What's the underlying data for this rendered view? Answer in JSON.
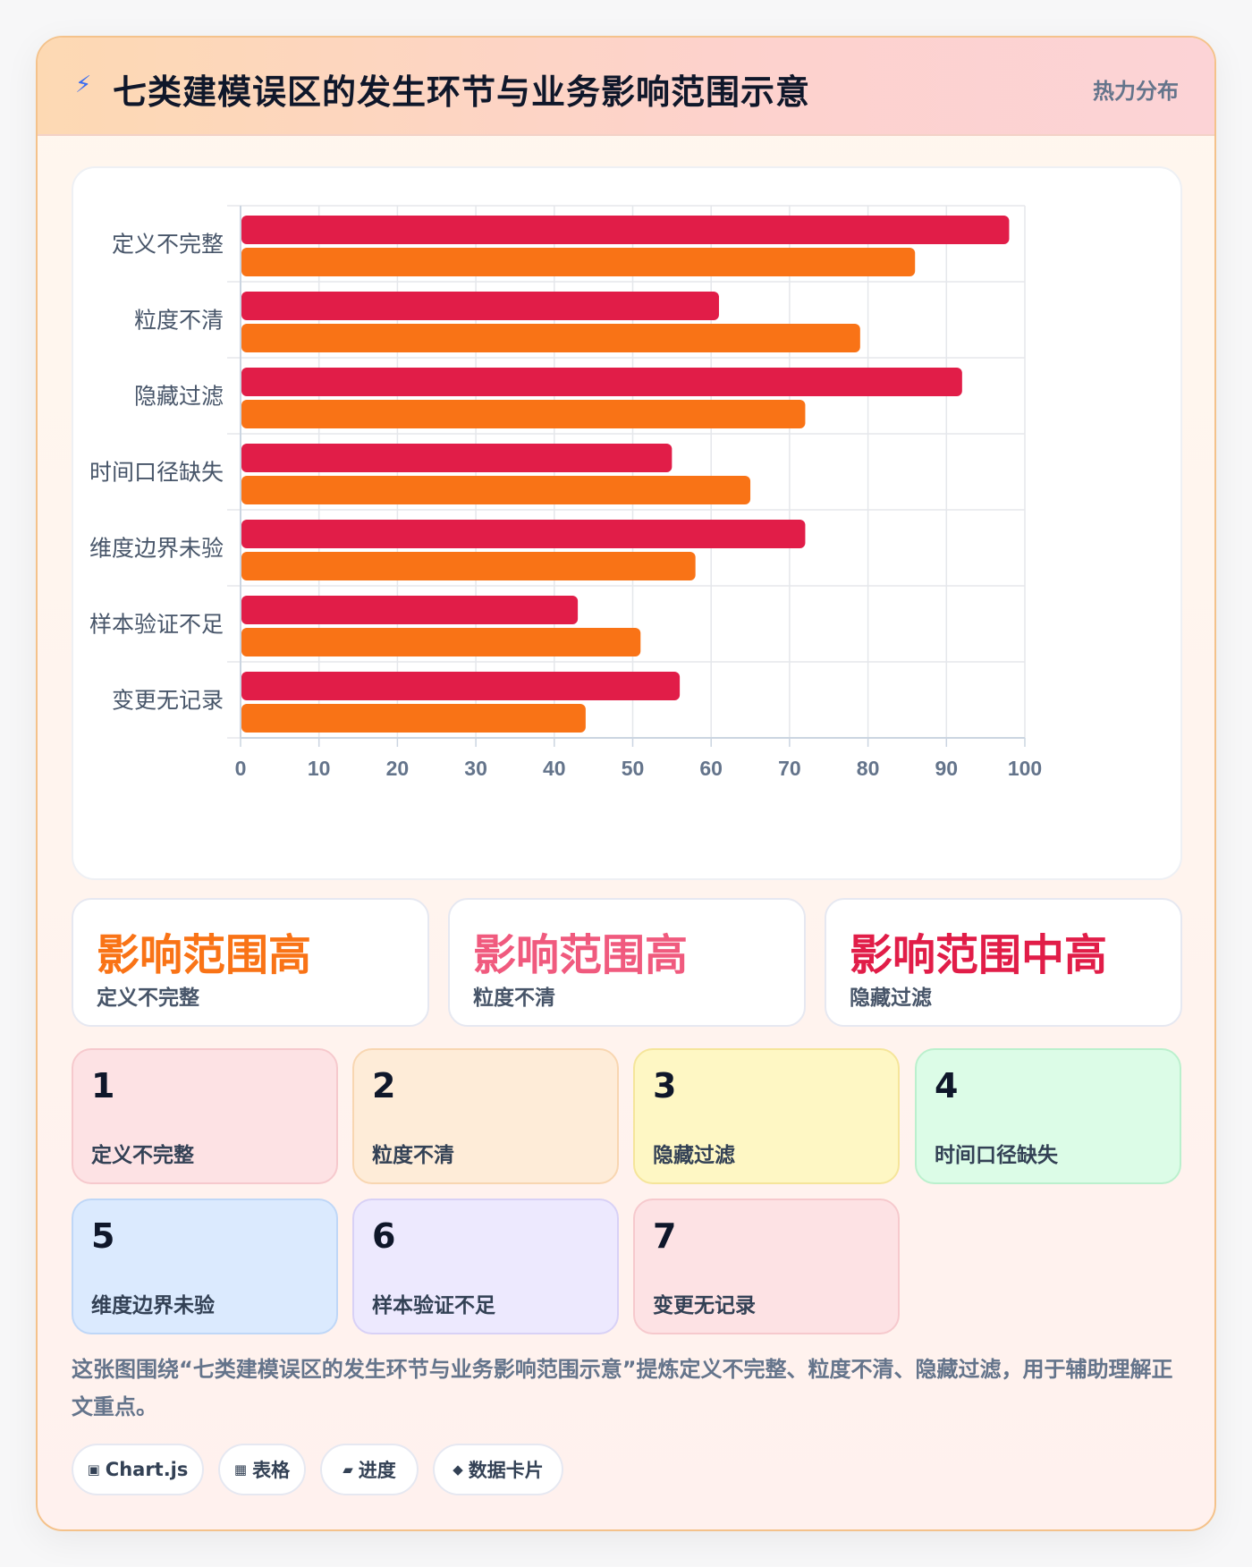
{
  "header": {
    "icon": "lightning-icon",
    "title": "七类建模误区的发生环节与业务影响范围示意",
    "tag": "热力分布"
  },
  "chart_data": {
    "type": "bar",
    "orientation": "horizontal",
    "categories": [
      "定义不完整",
      "粒度不清",
      "隐藏过滤",
      "时间口径缺失",
      "维度边界未验",
      "样本验证不足",
      "变更无记录"
    ],
    "series": [
      {
        "color": "#e11d48",
        "values": [
          98,
          61,
          92,
          55,
          72,
          43,
          56
        ]
      },
      {
        "color": "#f97316",
        "values": [
          86,
          79,
          72,
          65,
          58,
          51,
          44
        ]
      }
    ],
    "xlim": [
      0,
      100
    ],
    "xticks": [
      0,
      10,
      20,
      30,
      40,
      50,
      60,
      70,
      80,
      90,
      100
    ],
    "grid": true,
    "legend": "none"
  },
  "stats": [
    {
      "value": "影响范围高",
      "label": "定义不完整",
      "color": "#f97316"
    },
    {
      "value": "影响范围高",
      "label": "粒度不清",
      "color": "#f05a7e"
    },
    {
      "value": "影响范围中高",
      "label": "隐藏过滤",
      "color": "#e11d48"
    }
  ],
  "tiles": [
    {
      "num": "1",
      "label": "定义不完整",
      "bg": "#fde2e4",
      "border": "#f6c9cd"
    },
    {
      "num": "2",
      "label": "粒度不清",
      "bg": "#feecd8",
      "border": "#f8d6b1"
    },
    {
      "num": "3",
      "label": "隐藏过滤",
      "bg": "#fef7c4",
      "border": "#f5e59a"
    },
    {
      "num": "4",
      "label": "时间口径缺失",
      "bg": "#dcfce7",
      "border": "#bbf0cd"
    },
    {
      "num": "5",
      "label": "维度边界未验",
      "bg": "#dbeafe",
      "border": "#bfd7f7"
    },
    {
      "num": "6",
      "label": "样本验证不足",
      "bg": "#ede9fe",
      "border": "#d8d1f6"
    },
    {
      "num": "7",
      "label": "变更无记录",
      "bg": "#fde2e4",
      "border": "#f6c9cd"
    }
  ],
  "description": "这张图围绕“七类建模误区的发生环节与业务影响范围示意”提炼定义不完整、粒度不清、隐藏过滤，用于辅助理解正文重点。",
  "chips": [
    {
      "icon": "▣",
      "label": "Chart.js"
    },
    {
      "icon": "▦",
      "label": "表格"
    },
    {
      "icon": "▰",
      "label": "进度"
    },
    {
      "icon": "◆",
      "label": "数据卡片"
    }
  ]
}
